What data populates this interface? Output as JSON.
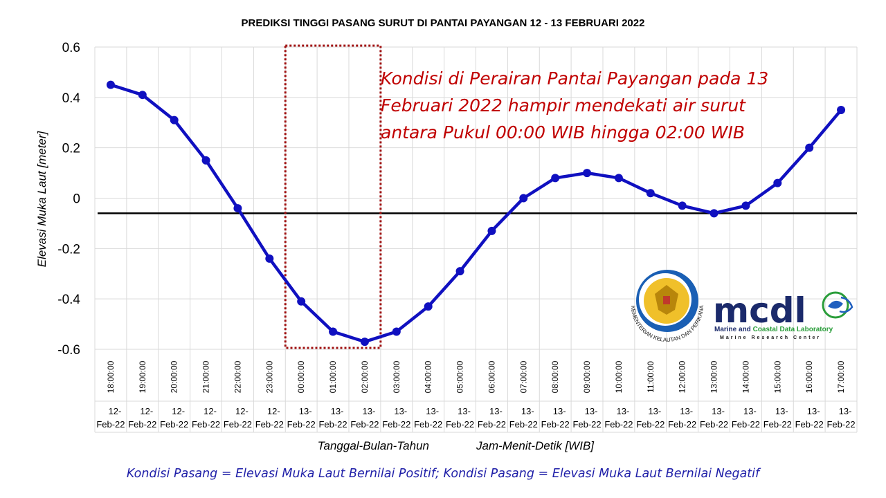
{
  "chart_data": {
    "type": "line",
    "title": "PREDIKSI TINGGI PASANG SURUT DI PANTAI PAYANGAN 12 - 13 FEBRUARI 2022",
    "ylabel": "Elevasi Muka Laut [meter]",
    "xlabel_date": "Tanggal-Bulan-Tahun",
    "xlabel_time": "Jam-Menit-Detik [WIB]",
    "ylim": [
      -0.6,
      0.6
    ],
    "yticks": [
      "0.6",
      "0.4",
      "0.2",
      "0",
      "-0.2",
      "-0.4",
      "-0.6"
    ],
    "times": [
      "18:00:00",
      "19:00:00",
      "20:00:00",
      "21:00:00",
      "22:00:00",
      "23:00:00",
      "00:00:00",
      "01:00:00",
      "02:00:00",
      "03:00:00",
      "04:00:00",
      "05:00:00",
      "06:00:00",
      "07:00:00",
      "08:00:00",
      "09:00:00",
      "10:00:00",
      "11:00:00",
      "12:00:00",
      "13:00:00",
      "14:00:00",
      "15:00:00",
      "16:00:00",
      "17:00:00"
    ],
    "dates_line1": [
      "12-",
      "12-",
      "12-",
      "12-",
      "12-",
      "12-",
      "13-",
      "13-",
      "13-",
      "13-",
      "13-",
      "13-",
      "13-",
      "13-",
      "13-",
      "13-",
      "13-",
      "13-",
      "13-",
      "13-",
      "13-",
      "13-",
      "13-",
      "13-"
    ],
    "dates_line2": [
      "Feb-22",
      "Feb-22",
      "Feb-22",
      "Feb-22",
      "Feb-22",
      "Feb-22",
      "Feb-22",
      "Feb-22",
      "Feb-22",
      "Feb-22",
      "Feb-22",
      "Feb-22",
      "Feb-22",
      "Feb-22",
      "Feb-22",
      "Feb-22",
      "Feb-22",
      "Feb-22",
      "Feb-22",
      "Feb-22",
      "Feb-22",
      "Feb-22",
      "Feb-22",
      "Feb-22"
    ],
    "values": [
      0.45,
      0.41,
      0.31,
      0.15,
      -0.04,
      -0.24,
      -0.41,
      -0.53,
      -0.57,
      -0.53,
      -0.43,
      -0.29,
      -0.13,
      0.0,
      0.08,
      0.1,
      0.08,
      0.02,
      -0.03,
      -0.06,
      -0.03,
      0.06,
      0.2,
      0.35
    ],
    "series_color": "#1010c0",
    "reference_line": {
      "value": -0.06,
      "color": "#000000"
    },
    "highlight": {
      "from_index": 6,
      "to_index": 8,
      "color": "#a01010",
      "style": "dotted"
    },
    "grid": true,
    "annotation_lines": [
      "Kondisi di Perairan Pantai Payangan pada 13",
      "Februari 2022 hampir mendekati air surut",
      "antara Pukul 00:00 WIB hingga 02:00 WIB"
    ],
    "annotation_color": "#c00000",
    "footnote": "Kondisi Pasang = Elevasi Muka Laut Bernilai Positif; Kondisi Pasang = Elevasi Muka Laut Bernilai Negatif",
    "footnote_color": "#1f1fa8"
  },
  "logos": {
    "kkp": {
      "ring_text": "KEMENTERIAN KELAUTAN DAN PERIKANAN",
      "ring_color": "#1a5fb4"
    },
    "mcdl": {
      "wordmark": "mcdl",
      "sub_part1": "Marine and ",
      "sub_part2": "Coastal Data Laboratory",
      "sub2": "Marine Research Center",
      "dark_color": "#1b2a6b",
      "green_color": "#2a9d3a",
      "blue_color": "#1f5fbf"
    }
  }
}
